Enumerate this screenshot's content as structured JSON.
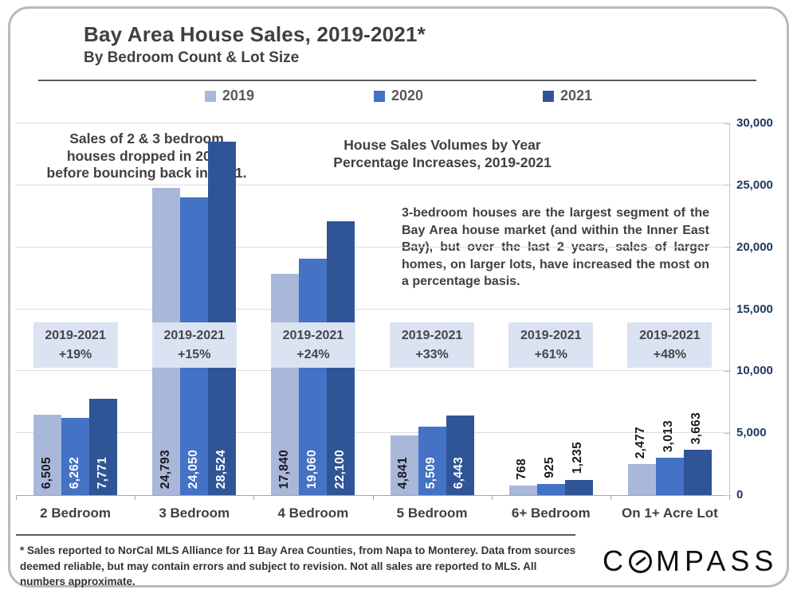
{
  "header": {
    "title": "Bay Area House Sales, 2019-2021*",
    "subtitle": "By Bedroom Count & Lot Size"
  },
  "annotations": {
    "note_left": "Sales of 2 & 3 bedroom\nhouses dropped in 2020\nbefore bouncing back in 2021.",
    "center_heading": "House Sales Volumes by Year\nPercentage Increases, 2019-2021",
    "right_paragraph": "3-bedroom houses are the largest segment of the Bay Area house market (and within the Inner East Bay), but over the last 2 years, sales of larger homes, on larger lots, have increased the most on a percentage basis."
  },
  "chart_data": {
    "type": "bar",
    "categories": [
      "2 Bedroom",
      "3 Bedroom",
      "4 Bedroom",
      "5 Bedroom",
      "6+ Bedroom",
      "On 1+ Acre Lot"
    ],
    "series": [
      {
        "name": "2019",
        "color": "#a9b7db",
        "label_color": "#1a1a1a",
        "values": [
          6505,
          24793,
          17840,
          4841,
          768,
          2477
        ]
      },
      {
        "name": "2020",
        "color": "#4472c4",
        "label_color": "#ffffff",
        "values": [
          6262,
          24050,
          19060,
          5509,
          925,
          3013
        ]
      },
      {
        "name": "2021",
        "color": "#2f5597",
        "label_color": "#ffffff",
        "values": [
          7771,
          28524,
          22100,
          6443,
          1235,
          3663
        ]
      }
    ],
    "pct_boxes": {
      "label": "2019-2021",
      "values": [
        "+19%",
        "+15%",
        "+24%",
        "+33%",
        "+61%",
        "+48%"
      ]
    },
    "ylim": [
      0,
      30000
    ],
    "ytick_step": 5000,
    "ytick_labels": [
      "0",
      "5,000",
      "10,000",
      "15,000",
      "20,000",
      "25,000",
      "30,000"
    ],
    "grid": true,
    "legend_position": "top",
    "colors": {
      "grid": "#dcdcdc",
      "axis": "#b4c7e7",
      "axis_label": "#1f3864",
      "pct_box_bg": "#dbe3f2"
    }
  },
  "footer": {
    "footnote": "* Sales reported to NorCal MLS Alliance for 11 Bay Area Counties, from Napa to Monterey. Data from sources deemed reliable, but may contain errors and subject to revision.  Not all sales are reported to MLS. All numbers approximate.",
    "logo_text": "COMPASS"
  }
}
